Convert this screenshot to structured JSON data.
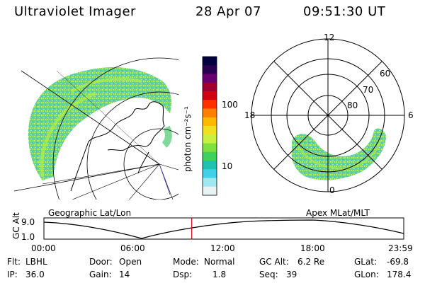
{
  "header": {
    "instrument": "Ultraviolet Imager",
    "date": "28 Apr 07",
    "time": "09:51:30 UT"
  },
  "colorbar": {
    "unit_label": "photon cm⁻²s⁻¹",
    "ticks": [
      "100",
      "10"
    ],
    "colors": [
      "#000040",
      "#2a0050",
      "#6a0070",
      "#a00030",
      "#d00010",
      "#ff3000",
      "#ff8000",
      "#ffb800",
      "#f0e020",
      "#c8f040",
      "#80e040",
      "#40d060",
      "#20c0b0",
      "#40d0e8",
      "#a0e8f0",
      "#e8f4f4"
    ]
  },
  "left_map": {
    "label": "Geographic Lat/Lon"
  },
  "right_map": {
    "label": "Apex MLat/MLT",
    "mlt_labels": [
      "12",
      "18",
      "6",
      "0"
    ],
    "lat_labels": [
      "60",
      "70",
      "80"
    ]
  },
  "timeline": {
    "axis_label": "GC Alt",
    "y_ticks": [
      "9.0",
      "1.0"
    ],
    "x_ticks": [
      "00:00",
      "06:00",
      "12:00",
      "18:00",
      "23:59"
    ],
    "current_hour": 9.86,
    "marker_color": "#d00000"
  },
  "info": {
    "flt_label": "Flt:",
    "flt_value": "LBHL",
    "ip_label": "IP:",
    "ip_value": "36.0",
    "door_label": "Door:",
    "door_value": "Open",
    "gain_label": "Gain:",
    "gain_value": "14",
    "mode_label": "Mode:",
    "mode_value": "Normal",
    "dsp_label": "Dsp:",
    "dsp_value": "1.8",
    "gcalt_label": "GC Alt:",
    "gcalt_value": "6.2 Re",
    "seq_label": "Seq:",
    "seq_value": "39",
    "glat_label": "GLat:",
    "glat_value": "-69.8",
    "glon_label": "GLon:",
    "glon_value": "178.4"
  }
}
